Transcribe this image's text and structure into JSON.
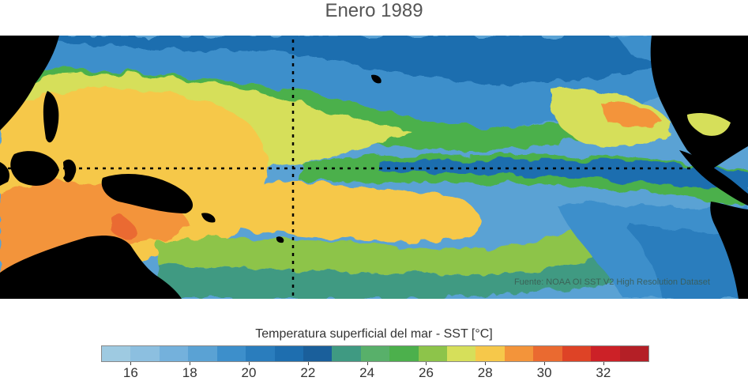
{
  "title": "Enero 1989",
  "source_note": "Fuente: NOAA OI SST V2 High Resolution Dataset",
  "colorbar": {
    "label": "Temperatura superficial del mar - SST  [°C]",
    "min": 15,
    "max": 33.5,
    "step": 1,
    "tick_values": [
      16,
      18,
      20,
      22,
      24,
      26,
      28,
      30,
      32
    ],
    "tick_labels": [
      "16",
      "18",
      "20",
      "22",
      "24",
      "26",
      "28",
      "30",
      "32"
    ],
    "colors": [
      "#9ecae1",
      "#8cbfe0",
      "#74b1dc",
      "#5aa2d4",
      "#3d8fcb",
      "#2a7dbd",
      "#1e6eaf",
      "#1a5f9b",
      "#3f9a82",
      "#58b06a",
      "#4cb04c",
      "#8dc44a",
      "#d6df5a",
      "#f6c84a",
      "#f3943a",
      "#ea6a30",
      "#de4326",
      "#cc2127",
      "#b41f26"
    ]
  },
  "map": {
    "region": "Pacífico tropical",
    "reference_lines": [
      "ecuador",
      "meridiano 180°"
    ]
  }
}
